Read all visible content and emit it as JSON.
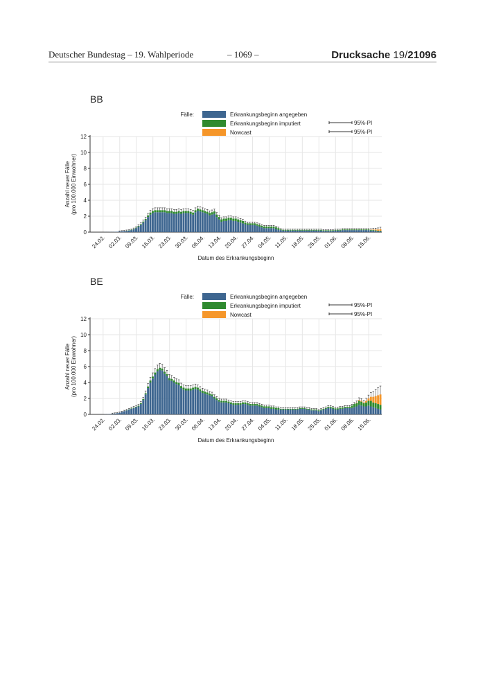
{
  "header": {
    "left": "Deutscher Bundestag – 19. Wahlperiode",
    "center": "– 1069 –",
    "right_prefix": "Drucksache",
    "right_number_a": "19/",
    "right_number_b": "21096"
  },
  "colors": {
    "angegeben": "#3e6690",
    "imputiert": "#2f8a2f",
    "nowcast": "#f5962a",
    "grid": "#e6e6e6"
  },
  "chart_data": [
    {
      "type": "bar",
      "stacked": true,
      "title": "BB",
      "legend": {
        "prefix": "Fälle:",
        "entries": [
          "Erkrankungsbeginn angegeben",
          "Erkrankungsbeginn imputiert",
          "Nowcast"
        ],
        "pi_labels": [
          "95%-PI",
          "95%-PI"
        ],
        "placement": "top-right"
      },
      "xlabel": "Datum des Erkrankungsbeginn",
      "ylabel": [
        "Anzahl neuer Fälle",
        "(pro 100.000 Einwohner)"
      ],
      "ylim": [
        0,
        12
      ],
      "yticks": [
        0,
        2,
        4,
        6,
        8,
        10,
        12
      ],
      "grid": true,
      "x_start": "19.02.",
      "x_end": "20.06.",
      "xticks": [
        "24.02.",
        "02.03.",
        "09.03.",
        "16.03.",
        "23.03.",
        "30.03.",
        "06.04.",
        "13.04.",
        "20.04.",
        "27.04.",
        "04.05.",
        "11.05.",
        "18.05.",
        "25.05.",
        "01.06.",
        "08.06.",
        "15.06."
      ],
      "series": [
        {
          "name": "Erkrankungsbeginn angegeben",
          "values": [
            0,
            0,
            0,
            0,
            0,
            0,
            0.01,
            0.01,
            0.02,
            0.02,
            0.03,
            0.05,
            0.07,
            0.1,
            0.12,
            0.15,
            0.2,
            0.25,
            0.35,
            0.5,
            0.7,
            0.9,
            1.2,
            1.5,
            1.9,
            2.2,
            2.4,
            2.5,
            2.5,
            2.5,
            2.5,
            2.5,
            2.4,
            2.4,
            2.4,
            2.3,
            2.3,
            2.4,
            2.3,
            2.4,
            2.4,
            2.4,
            2.3,
            2.2,
            2.5,
            2.7,
            2.6,
            2.5,
            2.4,
            2.3,
            2.1,
            2.2,
            2.3,
            1.9,
            1.6,
            1.3,
            1.4,
            1.4,
            1.5,
            1.5,
            1.4,
            1.4,
            1.3,
            1.2,
            1.1,
            1.0,
            0.9,
            0.9,
            0.9,
            0.9,
            0.8,
            0.7,
            0.6,
            0.5,
            0.5,
            0.5,
            0.5,
            0.5,
            0.4,
            0.3,
            0.25,
            0.2,
            0.2,
            0.2,
            0.2,
            0.2,
            0.2,
            0.2,
            0.2,
            0.2,
            0.2,
            0.2,
            0.2,
            0.2,
            0.2,
            0.2,
            0.2,
            0.2,
            0.15,
            0.15,
            0.15,
            0.15,
            0.15,
            0.2,
            0.2,
            0.2,
            0.25,
            0.25,
            0.25,
            0.25,
            0.25,
            0.25,
            0.25,
            0.25,
            0.25,
            0.25,
            0.25,
            0.25,
            0.2,
            0.2,
            0.15,
            0.1,
            0.1
          ]
        },
        {
          "name": "Erkrankungsbeginn imputiert",
          "values": [
            0,
            0,
            0,
            0,
            0,
            0,
            0,
            0,
            0,
            0,
            0,
            0,
            0,
            0,
            0,
            0.02,
            0.03,
            0.04,
            0.05,
            0.06,
            0.08,
            0.1,
            0.12,
            0.15,
            0.2,
            0.25,
            0.25,
            0.25,
            0.25,
            0.25,
            0.25,
            0.25,
            0.25,
            0.25,
            0.25,
            0.25,
            0.25,
            0.25,
            0.25,
            0.25,
            0.25,
            0.25,
            0.25,
            0.25,
            0.25,
            0.25,
            0.25,
            0.25,
            0.25,
            0.25,
            0.3,
            0.3,
            0.3,
            0.3,
            0.3,
            0.3,
            0.3,
            0.3,
            0.3,
            0.3,
            0.3,
            0.3,
            0.3,
            0.3,
            0.3,
            0.2,
            0.2,
            0.2,
            0.2,
            0.2,
            0.2,
            0.2,
            0.2,
            0.2,
            0.2,
            0.2,
            0.2,
            0.2,
            0.2,
            0.2,
            0.08,
            0.08,
            0.08,
            0.08,
            0.08,
            0.08,
            0.08,
            0.08,
            0.08,
            0.08,
            0.08,
            0.08,
            0.08,
            0.08,
            0.08,
            0.08,
            0.08,
            0.08,
            0.08,
            0.08,
            0.08,
            0.08,
            0.08,
            0.08,
            0.08,
            0.08,
            0.08,
            0.08,
            0.08,
            0.08,
            0.08,
            0.08,
            0.08,
            0.08,
            0.08,
            0.08,
            0.08,
            0.08,
            0.08,
            0.08,
            0.08,
            0.08,
            0.08
          ]
        },
        {
          "name": "Nowcast",
          "values": [
            0,
            0,
            0,
            0,
            0,
            0,
            0,
            0,
            0,
            0,
            0,
            0,
            0,
            0,
            0,
            0,
            0,
            0,
            0,
            0,
            0,
            0,
            0,
            0,
            0,
            0,
            0,
            0,
            0,
            0,
            0,
            0,
            0,
            0,
            0,
            0,
            0,
            0,
            0,
            0,
            0,
            0,
            0,
            0,
            0,
            0,
            0,
            0,
            0,
            0,
            0,
            0,
            0,
            0,
            0,
            0,
            0,
            0,
            0,
            0,
            0,
            0,
            0,
            0,
            0,
            0,
            0,
            0,
            0,
            0,
            0,
            0,
            0,
            0,
            0,
            0,
            0,
            0,
            0,
            0,
            0,
            0,
            0,
            0,
            0,
            0,
            0,
            0,
            0,
            0,
            0,
            0,
            0,
            0,
            0,
            0,
            0,
            0,
            0,
            0,
            0,
            0,
            0,
            0,
            0,
            0,
            0,
            0,
            0,
            0,
            0,
            0,
            0,
            0,
            0,
            0,
            0,
            0,
            0.03,
            0.05,
            0.1,
            0.15,
            0.2
          ]
        }
      ]
    },
    {
      "type": "bar",
      "stacked": true,
      "title": "BE",
      "legend": {
        "prefix": "Fälle:",
        "entries": [
          "Erkrankungsbeginn angegeben",
          "Erkrankungsbeginn imputiert",
          "Nowcast"
        ],
        "pi_labels": [
          "95%-PI",
          "95%-PI"
        ],
        "placement": "top-right"
      },
      "xlabel": "Datum des Erkrankungsbeginn",
      "ylabel": [
        "Anzahl neuer Fälle",
        "(pro 100.000 Einwohner)"
      ],
      "ylim": [
        0,
        12
      ],
      "yticks": [
        0,
        2,
        4,
        6,
        8,
        10,
        12
      ],
      "grid": true,
      "x_start": "19.02.",
      "x_end": "20.06.",
      "xticks": [
        "24.02.",
        "02.03.",
        "09.03.",
        "16.03.",
        "23.03.",
        "30.03.",
        "06.04.",
        "13.04.",
        "20.04.",
        "27.04.",
        "04.05.",
        "11.05.",
        "18.05.",
        "25.05.",
        "01.06.",
        "08.06.",
        "15.06."
      ],
      "series": [
        {
          "name": "Erkrankungsbeginn angegeben",
          "values": [
            0,
            0,
            0,
            0,
            0,
            0,
            0.02,
            0.03,
            0.05,
            0.07,
            0.1,
            0.15,
            0.2,
            0.3,
            0.4,
            0.5,
            0.6,
            0.7,
            0.8,
            0.9,
            1.0,
            1.3,
            1.8,
            2.5,
            3.3,
            4.0,
            4.5,
            5.0,
            5.4,
            5.6,
            5.5,
            5.1,
            4.8,
            4.3,
            4.2,
            4.0,
            3.8,
            3.7,
            3.3,
            3.1,
            3.0,
            3.0,
            3.0,
            3.1,
            3.2,
            3.1,
            2.9,
            2.7,
            2.6,
            2.5,
            2.4,
            2.3,
            2.0,
            1.8,
            1.6,
            1.5,
            1.5,
            1.5,
            1.4,
            1.3,
            1.2,
            1.2,
            1.2,
            1.2,
            1.3,
            1.3,
            1.2,
            1.1,
            1.1,
            1.1,
            1.1,
            1.0,
            0.9,
            0.8,
            0.8,
            0.8,
            0.7,
            0.7,
            0.6,
            0.6,
            0.6,
            0.6,
            0.6,
            0.6,
            0.6,
            0.6,
            0.6,
            0.6,
            0.7,
            0.7,
            0.7,
            0.6,
            0.6,
            0.5,
            0.5,
            0.5,
            0.4,
            0.5,
            0.6,
            0.7,
            0.8,
            0.8,
            0.7,
            0.6,
            0.6,
            0.7,
            0.7,
            0.8,
            0.8,
            0.8,
            0.8,
            0.9,
            1.0,
            1.2,
            1.1,
            1.0,
            1.0,
            1.1,
            1.0,
            0.9,
            0.8,
            0.7,
            0.6
          ]
        },
        {
          "name": "Erkrankungsbeginn imputiert",
          "values": [
            0,
            0,
            0,
            0,
            0,
            0,
            0,
            0,
            0,
            0,
            0,
            0,
            0,
            0,
            0,
            0.02,
            0.03,
            0.04,
            0.05,
            0.06,
            0.08,
            0.1,
            0.12,
            0.15,
            0.2,
            0.25,
            0.25,
            0.25,
            0.25,
            0.25,
            0.25,
            0.25,
            0.25,
            0.25,
            0.25,
            0.25,
            0.25,
            0.25,
            0.25,
            0.25,
            0.25,
            0.25,
            0.25,
            0.25,
            0.25,
            0.25,
            0.25,
            0.25,
            0.25,
            0.25,
            0.2,
            0.2,
            0.2,
            0.2,
            0.2,
            0.2,
            0.2,
            0.2,
            0.2,
            0.2,
            0.2,
            0.2,
            0.2,
            0.2,
            0.2,
            0.2,
            0.2,
            0.2,
            0.2,
            0.2,
            0.2,
            0.2,
            0.2,
            0.2,
            0.2,
            0.2,
            0.2,
            0.2,
            0.2,
            0.2,
            0.1,
            0.1,
            0.1,
            0.1,
            0.1,
            0.1,
            0.1,
            0.1,
            0.1,
            0.1,
            0.1,
            0.1,
            0.1,
            0.1,
            0.1,
            0.1,
            0.1,
            0.1,
            0.1,
            0.1,
            0.15,
            0.15,
            0.15,
            0.15,
            0.15,
            0.15,
            0.15,
            0.15,
            0.15,
            0.15,
            0.3,
            0.4,
            0.4,
            0.5,
            0.5,
            0.4,
            0.5,
            0.6,
            0.7,
            0.6,
            0.6,
            0.6,
            0.6
          ]
        },
        {
          "name": "Nowcast",
          "values": [
            0,
            0,
            0,
            0,
            0,
            0,
            0,
            0,
            0,
            0,
            0,
            0,
            0,
            0,
            0,
            0,
            0,
            0,
            0,
            0,
            0,
            0,
            0,
            0,
            0,
            0,
            0,
            0,
            0,
            0,
            0,
            0,
            0,
            0,
            0,
            0,
            0,
            0,
            0,
            0,
            0,
            0,
            0,
            0,
            0,
            0,
            0,
            0,
            0,
            0,
            0,
            0,
            0,
            0,
            0,
            0,
            0,
            0,
            0,
            0,
            0,
            0,
            0,
            0,
            0,
            0,
            0,
            0,
            0,
            0,
            0,
            0,
            0,
            0,
            0,
            0,
            0,
            0,
            0,
            0,
            0,
            0,
            0,
            0,
            0,
            0,
            0,
            0,
            0,
            0,
            0,
            0,
            0,
            0,
            0,
            0,
            0,
            0,
            0,
            0,
            0,
            0,
            0,
            0,
            0,
            0,
            0,
            0,
            0,
            0,
            0,
            0,
            0.05,
            0.1,
            0.1,
            0.1,
            0.2,
            0.3,
            0.5,
            0.7,
            0.9,
            1.1,
            1.3
          ]
        }
      ]
    }
  ]
}
